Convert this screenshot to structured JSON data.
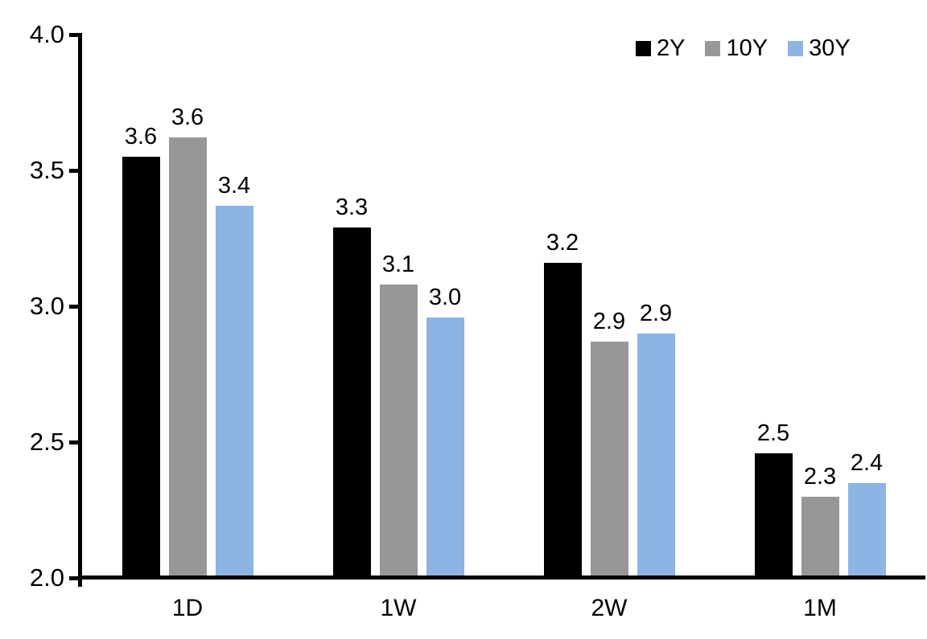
{
  "chart_data": {
    "type": "bar",
    "title": "",
    "xlabel": "",
    "ylabel": "",
    "categories": [
      "1D",
      "1W",
      "2W",
      "1M"
    ],
    "series": [
      {
        "name": "2Y",
        "color": "#000000",
        "values": [
          3.55,
          3.29,
          3.16,
          2.46
        ],
        "labels": [
          "3.6",
          "3.3",
          "3.2",
          "2.5"
        ]
      },
      {
        "name": "10Y",
        "color": "#979797",
        "values": [
          3.62,
          3.08,
          2.87,
          2.3
        ],
        "labels": [
          "3.6",
          "3.1",
          "2.9",
          "2.3"
        ]
      },
      {
        "name": "30Y",
        "color": "#8db4e2",
        "values": [
          3.37,
          2.96,
          2.9,
          2.35
        ],
        "labels": [
          "3.4",
          "3.0",
          "2.9",
          "2.4"
        ]
      }
    ],
    "ylim": [
      2.0,
      4.0
    ],
    "yticks": [
      "4.0",
      "3.5",
      "3.0",
      "2.5",
      "2.0"
    ],
    "ytick_values": [
      4.0,
      3.5,
      3.0,
      2.5,
      2.0
    ],
    "grid": false,
    "legend_position": "top-right",
    "axis_color": "#000000",
    "text_color": "#000000"
  }
}
